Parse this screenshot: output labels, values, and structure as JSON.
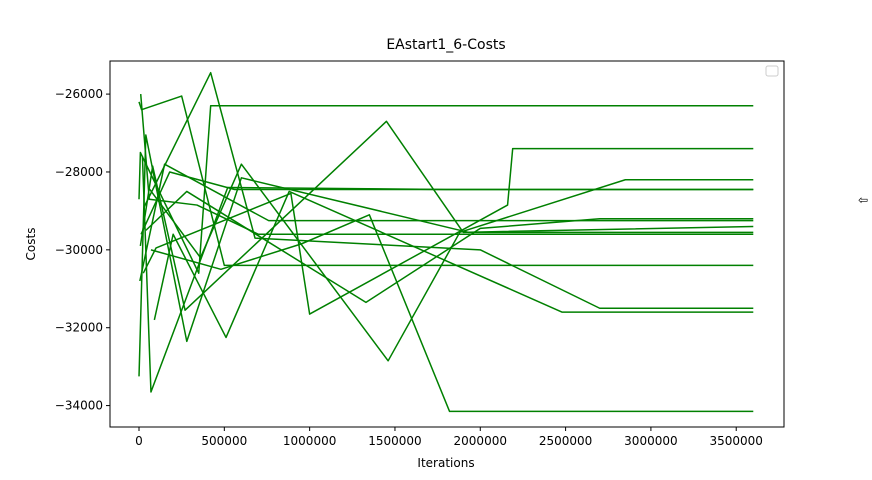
{
  "chart_data": {
    "type": "line",
    "title": "EAstart1_6-Costs",
    "xlabel": "Iterations",
    "ylabel": "Costs",
    "xlim": [
      -170000,
      3780000
    ],
    "ylim": [
      -34550,
      -25150
    ],
    "xticks": [
      0,
      500000,
      1000000,
      1500000,
      2000000,
      2500000,
      3000000,
      3500000
    ],
    "xtick_labels": [
      "0",
      "500000",
      "1000000",
      "1500000",
      "2000000",
      "2500000",
      "3000000",
      "3500000"
    ],
    "yticks": [
      -34000,
      -32000,
      -30000,
      -28000,
      -26000
    ],
    "ytick_labels": [
      "−34000",
      "−32000",
      "−30000",
      "−28000",
      "−26000"
    ],
    "grid": false,
    "legend": {
      "placement": "top-right",
      "entries": []
    },
    "series_color": "#008000",
    "series": [
      {
        "x": [
          0,
          15000,
          250000,
          500000,
          3600000
        ],
        "y": [
          -26200,
          -26400,
          -26050,
          -30400,
          -30400
        ]
      },
      {
        "x": [
          0,
          8000,
          350000,
          420000,
          3600000
        ],
        "y": [
          -28700,
          -27500,
          -30600,
          -26300,
          -26300
        ]
      },
      {
        "x": [
          0,
          40000,
          280000,
          600000,
          1930000,
          3600000
        ],
        "y": [
          -33250,
          -27050,
          -32350,
          -28150,
          -29550,
          -29550
        ]
      },
      {
        "x": [
          5000,
          150000,
          760000,
          1100000,
          3600000
        ],
        "y": [
          -30800,
          -27800,
          -29250,
          -29250,
          -29250
        ]
      },
      {
        "x": [
          8000,
          80000,
          270000,
          1450000,
          1900000,
          3600000
        ],
        "y": [
          -29900,
          -27850,
          -31550,
          -26700,
          -29550,
          -29400
        ]
      },
      {
        "x": [
          10000,
          60000,
          340000,
          700000,
          3600000
        ],
        "y": [
          -26000,
          -28700,
          -28850,
          -29600,
          -29600
        ]
      },
      {
        "x": [
          12000,
          180000,
          560000,
          1850000,
          2500000,
          3600000
        ],
        "y": [
          -29600,
          -28000,
          -28450,
          -28450,
          -28450,
          -28450
        ]
      },
      {
        "x": [
          20000,
          70000,
          520000,
          1800000,
          3600000
        ],
        "y": [
          -27600,
          -33650,
          -28400,
          -28450,
          -28450
        ]
      },
      {
        "x": [
          25000,
          100000,
          890000,
          1000000,
          2160000,
          2190000,
          3600000
        ],
        "y": [
          -30600,
          -29950,
          -28550,
          -31650,
          -28850,
          -27400,
          -27400
        ]
      },
      {
        "x": [
          30000,
          420000,
          680000,
          2000000,
          2700000,
          3600000
        ],
        "y": [
          -28900,
          -25450,
          -29700,
          -30000,
          -31500,
          -31500
        ]
      },
      {
        "x": [
          40000,
          280000,
          1330000,
          2000000,
          2700000,
          3600000
        ],
        "y": [
          -29500,
          -28500,
          -31350,
          -29450,
          -29200,
          -29200
        ]
      },
      {
        "x": [
          55000,
          360000,
          600000,
          1460000,
          1880000,
          2850000,
          3600000
        ],
        "y": [
          -28400,
          -30200,
          -27800,
          -32850,
          -29550,
          -28200,
          -28200
        ]
      },
      {
        "x": [
          70000,
          480000,
          950000,
          1350000,
          1820000,
          3600000
        ],
        "y": [
          -30000,
          -30500,
          -29850,
          -29100,
          -34150,
          -34150
        ]
      },
      {
        "x": [
          90000,
          200000,
          510000,
          880000,
          2480000,
          3600000
        ],
        "y": [
          -31800,
          -29600,
          -32250,
          -28500,
          -31600,
          -31600
        ]
      }
    ]
  }
}
